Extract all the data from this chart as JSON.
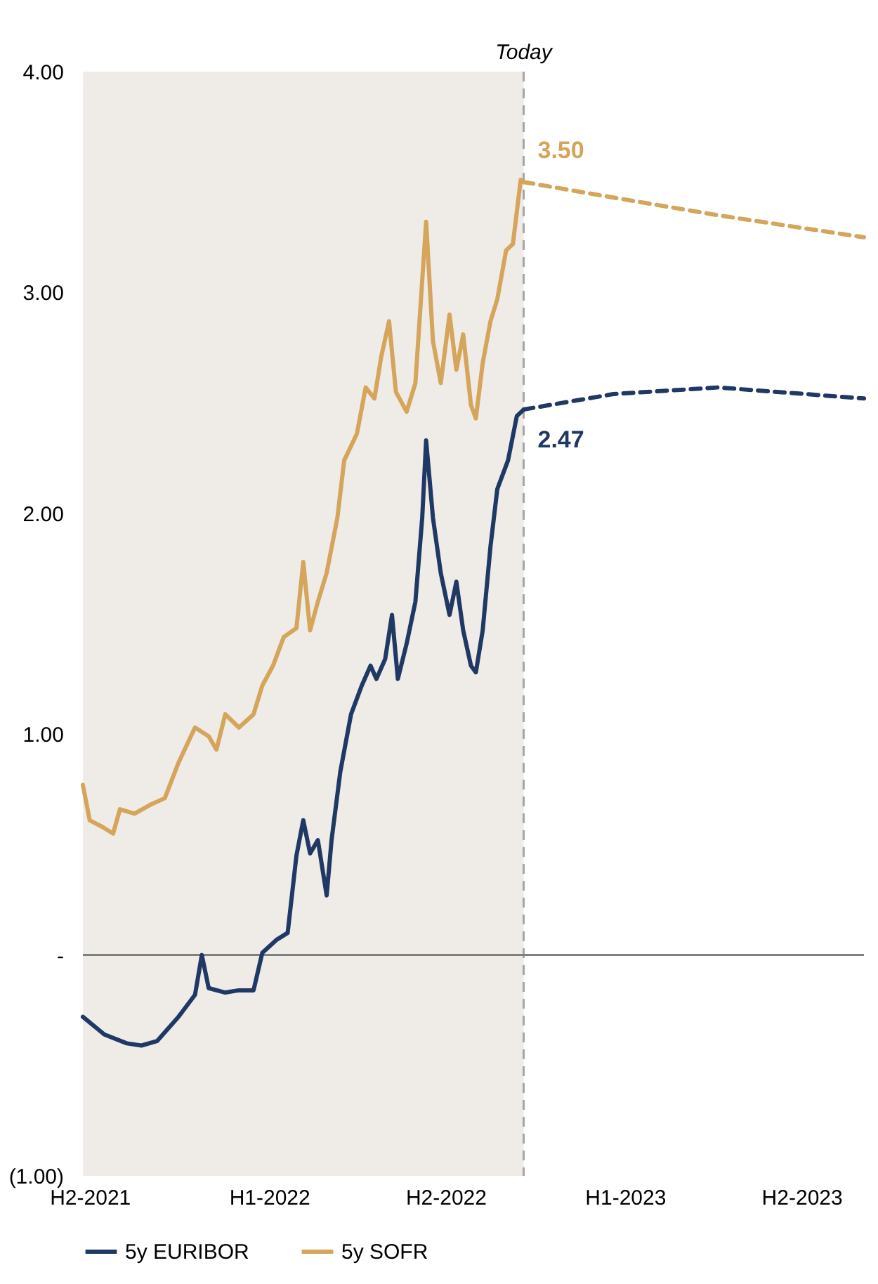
{
  "chart_data": {
    "type": "line",
    "xlim": [
      "2021-06-24",
      "2023-09-03"
    ],
    "ylim": [
      -1,
      4
    ],
    "xticks": [
      {
        "value": "2021-07-01",
        "label": "H2-2021"
      },
      {
        "value": "2022-01-01",
        "label": "H1-2022"
      },
      {
        "value": "2022-07-01",
        "label": "H2-2022"
      },
      {
        "value": "2023-01-01",
        "label": "H1-2023"
      },
      {
        "value": "2023-07-01",
        "label": "H2-2023"
      }
    ],
    "yticks": [
      {
        "value": -1,
        "label": "(1.00)"
      },
      {
        "value": 0,
        "label": "-"
      },
      {
        "value": 1,
        "label": "1.00"
      },
      {
        "value": 2,
        "label": "2.00"
      },
      {
        "value": 3,
        "label": "3.00"
      },
      {
        "value": 4,
        "label": "4.00"
      }
    ],
    "grid": false,
    "legend": "bottom",
    "line_style": "solid",
    "marker": "none",
    "series": [
      {
        "name": "5y EURIBOR",
        "color": "#1f3864",
        "x": [
          "2021-06-24",
          "2021-07-16",
          "2021-08-08",
          "2021-08-23",
          "2021-09-08",
          "2021-09-30",
          "2021-10-17",
          "2021-10-24",
          "2021-10-31",
          "2021-11-17",
          "2021-12-01",
          "2021-12-16",
          "2021-12-25",
          "2022-01-09",
          "2022-01-20",
          "2022-01-29",
          "2022-02-05",
          "2022-02-12",
          "2022-02-20",
          "2022-03-01",
          "2022-03-06",
          "2022-03-15",
          "2022-03-26",
          "2022-04-06",
          "2022-04-15",
          "2022-04-21",
          "2022-04-30",
          "2022-05-07",
          "2022-05-13",
          "2022-05-22",
          "2022-05-31",
          "2022-06-07",
          "2022-06-11",
          "2022-06-18",
          "2022-06-26",
          "2022-07-05",
          "2022-07-12",
          "2022-07-19",
          "2022-07-27",
          "2022-08-01",
          "2022-08-08",
          "2022-08-16",
          "2022-08-23",
          "2022-09-03",
          "2022-09-12",
          "2022-09-19"
        ],
        "values": [
          -0.28,
          -0.36,
          -0.4,
          -0.41,
          -0.39,
          -0.28,
          -0.18,
          0,
          -0.15,
          -0.17,
          -0.16,
          -0.16,
          0.01,
          0.07,
          0.1,
          0.45,
          0.61,
          0.46,
          0.52,
          0.27,
          0.52,
          0.83,
          1.09,
          1.22,
          1.31,
          1.25,
          1.34,
          1.54,
          1.25,
          1.41,
          1.6,
          1.98,
          2.33,
          1.98,
          1.73,
          1.54,
          1.69,
          1.47,
          1.31,
          1.28,
          1.47,
          1.85,
          2.11,
          2.24,
          2.44,
          2.47
        ]
      },
      {
        "name": "5y SOFR",
        "color": "#d4a55a",
        "x": [
          "2021-06-24",
          "2021-07-01",
          "2021-07-14",
          "2021-07-25",
          "2021-08-01",
          "2021-08-16",
          "2021-09-01",
          "2021-09-16",
          "2021-09-30",
          "2021-10-17",
          "2021-10-31",
          "2021-11-08",
          "2021-11-17",
          "2021-12-01",
          "2021-12-16",
          "2021-12-25",
          "2022-01-05",
          "2022-01-16",
          "2022-01-29",
          "2022-02-05",
          "2022-02-12",
          "2022-02-20",
          "2022-03-01",
          "2022-03-12",
          "2022-03-19",
          "2022-04-01",
          "2022-04-10",
          "2022-04-19",
          "2022-04-26",
          "2022-05-04",
          "2022-05-11",
          "2022-05-22",
          "2022-05-31",
          "2022-06-11",
          "2022-06-18",
          "2022-06-26",
          "2022-07-05",
          "2022-07-12",
          "2022-07-19",
          "2022-07-27",
          "2022-08-01",
          "2022-08-08",
          "2022-08-16",
          "2022-08-23",
          "2022-09-01",
          "2022-09-08",
          "2022-09-16",
          "2022-09-19"
        ],
        "values": [
          0.77,
          0.61,
          0.58,
          0.55,
          0.66,
          0.64,
          0.68,
          0.71,
          0.87,
          1.03,
          0.99,
          0.93,
          1.09,
          1.03,
          1.09,
          1.22,
          1.31,
          1.44,
          1.48,
          1.78,
          1.47,
          1.6,
          1.73,
          1.98,
          2.24,
          2.36,
          2.57,
          2.52,
          2.71,
          2.87,
          2.55,
          2.46,
          2.59,
          3.32,
          2.78,
          2.59,
          2.9,
          2.65,
          2.81,
          2.49,
          2.43,
          2.68,
          2.87,
          2.97,
          3.19,
          3.22,
          3.51,
          3.5
        ]
      },
      {
        "color": "#1f3864",
        "line_style": "dashed",
        "x": [
          "2022-09-19",
          "2022-12-20",
          "2023-04-06",
          "2023-09-03"
        ],
        "values": [
          2.47,
          2.54,
          2.57,
          2.52
        ]
      },
      {
        "color": "#d4a55a",
        "line_style": "dashed",
        "x": [
          "2022-09-19",
          "2022-12-20",
          "2023-04-06",
          "2023-09-03"
        ],
        "values": [
          3.5,
          3.43,
          3.35,
          3.25
        ]
      }
    ],
    "ref_lines": [
      {
        "axis": "x",
        "value": "2022-09-19",
        "label": "Today",
        "color": "#a6a6a6",
        "line_style": "dashed"
      },
      {
        "axis": "y",
        "value": 0,
        "color": "#808080",
        "line_style": "solid"
      }
    ],
    "bands": [
      {
        "axis": "x",
        "from": "2021-06-24",
        "to": "2022-09-19",
        "color": "#efebe7"
      }
    ],
    "annotations": [
      {
        "text": "2.47",
        "x": "2022-09-19",
        "y": 2.47
      },
      {
        "text": "3.50",
        "x": "2022-09-19",
        "y": 3.5
      }
    ]
  }
}
